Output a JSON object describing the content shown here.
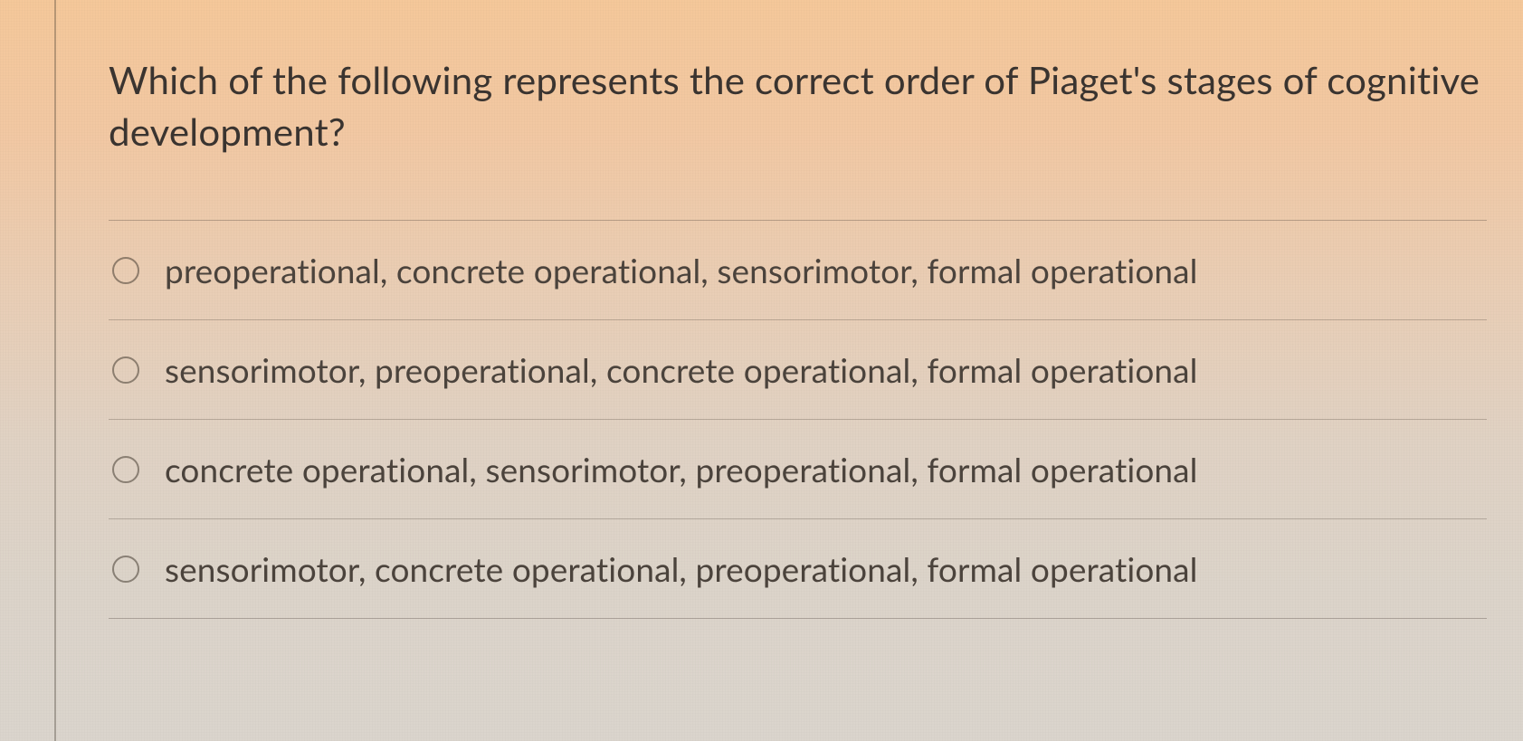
{
  "question": {
    "text": "Which of the following represents the correct order of Piaget's stages of cognitive development?",
    "text_color": "#3a3430",
    "font_size_pt": 32
  },
  "options": [
    {
      "label": "preoperational, concrete operational, sensorimotor, formal operational",
      "selected": false
    },
    {
      "label": "sensorimotor, preoperational, concrete operational, formal operational",
      "selected": false
    },
    {
      "label": "concrete operational, sensorimotor, preoperational, formal operational",
      "selected": false
    },
    {
      "label": "sensorimotor, concrete operational, preoperational, formal operational",
      "selected": false
    }
  ],
  "style": {
    "background_gradient_top": "#f5c89a",
    "background_gradient_bottom": "#dbd5cd",
    "divider_color": "rgba(80,70,60,0.32)",
    "radio_border_color": "rgba(70,60,50,0.55)",
    "option_text_color": "#4b433c",
    "left_rule_color": "rgba(70,60,50,0.35)",
    "option_font_size_pt": 28
  }
}
